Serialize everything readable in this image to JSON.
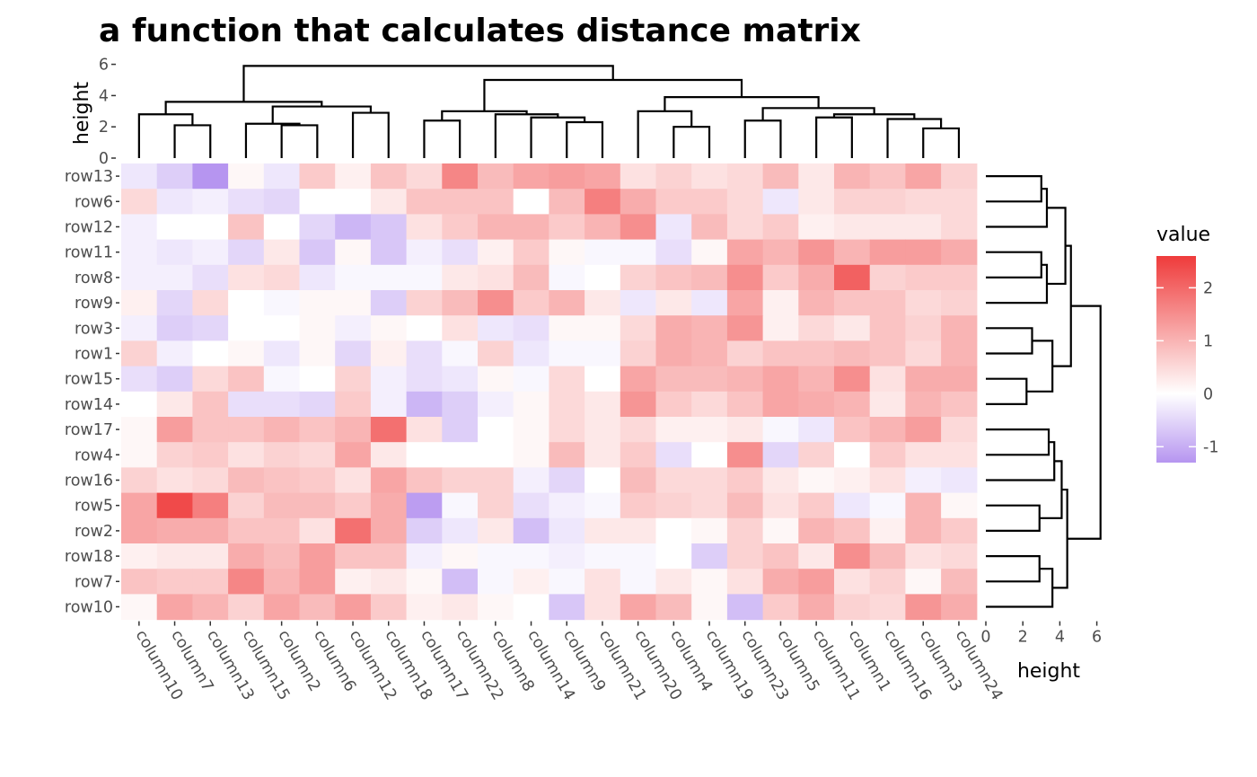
{
  "chart_data": {
    "type": "heatmap",
    "title": "a function that calculates distance matrix",
    "columns": [
      "column10",
      "column7",
      "column13",
      "column15",
      "column2",
      "column6",
      "column12",
      "column18",
      "column17",
      "column22",
      "column8",
      "column14",
      "column9",
      "column21",
      "column20",
      "column4",
      "column19",
      "column23",
      "column5",
      "column11",
      "column1",
      "column16",
      "column3",
      "column24"
    ],
    "rows": [
      "row13",
      "row6",
      "row12",
      "row11",
      "row8",
      "row9",
      "row3",
      "row1",
      "row15",
      "row14",
      "row17",
      "row4",
      "row16",
      "row5",
      "row2",
      "row18",
      "row7",
      "row10"
    ],
    "values": [
      [
        -0.3,
        -0.6,
        -1.4,
        0.1,
        -0.3,
        0.7,
        0.2,
        0.8,
        0.5,
        1.6,
        0.9,
        1.2,
        1.3,
        1.2,
        0.4,
        0.6,
        0.4,
        0.5,
        0.9,
        0.3,
        1.0,
        0.8,
        1.2,
        0.6
      ],
      [
        0.5,
        -0.3,
        -0.2,
        -0.4,
        -0.5,
        0.0,
        0.0,
        0.3,
        0.8,
        0.8,
        0.8,
        0.0,
        0.9,
        1.7,
        1.1,
        0.7,
        0.7,
        0.5,
        -0.3,
        0.3,
        0.6,
        0.6,
        0.5,
        0.5
      ],
      [
        -0.2,
        0.0,
        0.0,
        0.8,
        0.0,
        -0.5,
        -0.9,
        -0.7,
        0.4,
        0.7,
        1.0,
        1.0,
        0.7,
        1.0,
        1.5,
        -0.3,
        0.9,
        0.5,
        0.7,
        0.2,
        0.3,
        0.3,
        0.3,
        0.5
      ],
      [
        -0.2,
        -0.3,
        -0.2,
        -0.5,
        0.3,
        -0.7,
        0.1,
        -0.7,
        -0.2,
        -0.4,
        0.2,
        0.7,
        0.1,
        -0.1,
        -0.1,
        -0.4,
        0.1,
        1.2,
        1.0,
        1.4,
        1.0,
        1.3,
        1.3,
        1.1
      ],
      [
        -0.2,
        -0.2,
        -0.4,
        0.4,
        0.5,
        -0.3,
        -0.1,
        -0.1,
        -0.1,
        0.3,
        0.4,
        0.9,
        -0.1,
        0.0,
        0.6,
        0.8,
        0.9,
        1.5,
        0.7,
        1.1,
        2.1,
        0.6,
        0.7,
        0.7
      ],
      [
        0.2,
        -0.5,
        0.5,
        0.0,
        -0.1,
        0.1,
        0.1,
        -0.6,
        0.6,
        0.9,
        1.5,
        0.7,
        1.0,
        0.3,
        -0.3,
        0.3,
        -0.3,
        1.2,
        0.2,
        1.0,
        0.8,
        0.8,
        0.5,
        0.6
      ],
      [
        -0.2,
        -0.6,
        -0.5,
        0.0,
        0.0,
        0.1,
        -0.2,
        0.1,
        0.0,
        0.4,
        -0.3,
        -0.4,
        0.1,
        0.1,
        0.5,
        1.1,
        1.0,
        1.4,
        0.2,
        0.5,
        0.3,
        0.8,
        0.6,
        1.0
      ],
      [
        0.6,
        -0.2,
        0.0,
        0.1,
        -0.3,
        0.1,
        -0.5,
        0.2,
        -0.4,
        -0.1,
        0.6,
        -0.3,
        -0.1,
        -0.1,
        0.6,
        1.1,
        1.0,
        0.6,
        0.8,
        0.8,
        0.9,
        0.8,
        0.5,
        1.0
      ],
      [
        -0.4,
        -0.6,
        0.5,
        0.8,
        -0.1,
        0.0,
        0.6,
        -0.2,
        -0.4,
        -0.3,
        0.1,
        -0.1,
        0.5,
        0.0,
        1.2,
        0.9,
        0.9,
        1.0,
        1.2,
        1.0,
        1.5,
        0.4,
        1.1,
        1.1
      ],
      [
        0.0,
        0.3,
        0.8,
        -0.4,
        -0.4,
        -0.5,
        0.7,
        -0.2,
        -0.9,
        -0.6,
        -0.2,
        0.1,
        0.5,
        0.3,
        1.4,
        0.7,
        0.5,
        0.8,
        1.2,
        1.1,
        1.0,
        0.3,
        1.0,
        0.8
      ],
      [
        0.1,
        1.3,
        0.8,
        0.8,
        1.0,
        0.8,
        1.0,
        1.9,
        0.4,
        -0.6,
        0.0,
        0.1,
        0.5,
        0.3,
        0.5,
        0.2,
        0.2,
        0.3,
        -0.1,
        -0.3,
        0.8,
        1.0,
        1.3,
        0.5
      ],
      [
        0.1,
        0.6,
        0.7,
        0.4,
        0.6,
        0.5,
        1.2,
        0.3,
        0.0,
        0.0,
        0.0,
        0.1,
        0.9,
        0.3,
        0.7,
        -0.4,
        0.0,
        1.5,
        -0.5,
        0.6,
        0.0,
        0.7,
        0.4,
        0.4
      ],
      [
        0.6,
        0.4,
        0.5,
        0.9,
        0.8,
        0.7,
        0.4,
        1.2,
        0.8,
        0.6,
        0.6,
        -0.2,
        -0.5,
        0.0,
        0.9,
        0.5,
        0.5,
        0.7,
        0.3,
        0.1,
        0.2,
        0.4,
        -0.2,
        -0.3
      ],
      [
        1.2,
        2.4,
        1.7,
        0.6,
        0.9,
        0.9,
        0.7,
        1.1,
        -1.2,
        -0.1,
        0.6,
        -0.4,
        -0.2,
        -0.1,
        0.7,
        0.6,
        0.5,
        0.9,
        0.4,
        0.7,
        -0.3,
        -0.1,
        1.0,
        0.1
      ],
      [
        1.2,
        1.1,
        1.1,
        0.8,
        0.8,
        0.4,
        1.9,
        1.1,
        -0.6,
        -0.3,
        0.3,
        -0.8,
        -0.3,
        0.3,
        0.3,
        0.0,
        0.1,
        0.6,
        0.1,
        1.0,
        0.8,
        0.2,
        1.0,
        0.7
      ],
      [
        0.2,
        0.3,
        0.3,
        1.1,
        0.9,
        1.3,
        0.8,
        0.8,
        -0.2,
        0.1,
        -0.1,
        -0.1,
        -0.2,
        -0.1,
        -0.1,
        0.0,
        -0.6,
        0.6,
        0.8,
        0.3,
        1.5,
        0.9,
        0.4,
        0.5
      ],
      [
        0.8,
        0.7,
        0.7,
        1.6,
        1.0,
        1.3,
        0.2,
        0.3,
        0.1,
        -0.8,
        -0.1,
        0.2,
        -0.1,
        0.4,
        -0.1,
        0.3,
        0.1,
        0.4,
        1.1,
        1.3,
        0.4,
        0.6,
        0.1,
        0.9
      ],
      [
        0.1,
        1.2,
        1.0,
        0.6,
        1.2,
        0.9,
        1.3,
        0.7,
        0.2,
        0.3,
        0.1,
        0.0,
        -0.7,
        0.4,
        1.2,
        0.9,
        0.1,
        -0.8,
        0.7,
        1.1,
        0.6,
        0.5,
        1.4,
        1.1
      ]
    ],
    "col_dendrogram": {
      "label": "height",
      "ticks": [
        0,
        2,
        4,
        6
      ],
      "ylim": [
        0,
        6
      ],
      "merges": [
        {
          "left": "column7",
          "right": "column13",
          "height": 2.1
        },
        {
          "left": "column10",
          "right": "column7+13",
          "height": 2.8
        },
        {
          "left": "column2",
          "right": "column6",
          "height": 2.1
        },
        {
          "left": "column15",
          "right": "column2+6",
          "height": 2.2
        },
        {
          "left": "column12",
          "right": "column18",
          "height": 2.9
        },
        {
          "left": "column15+2+6",
          "right": "column12+18",
          "height": 3.3
        },
        {
          "left": "cluster A",
          "right": "cluster B",
          "height": 3.6
        },
        {
          "left": "column17",
          "right": "column22",
          "height": 2.4
        },
        {
          "left": "column9",
          "right": "column21",
          "height": 2.3
        },
        {
          "left": "column14",
          "right": "column9+21",
          "height": 2.6
        },
        {
          "left": "column8",
          "right": "column14+9+21",
          "height": 2.8
        },
        {
          "left": "column17+22",
          "right": "column8+14+9+21",
          "height": 3.0
        },
        {
          "left": "column4",
          "right": "column19",
          "height": 2.0
        },
        {
          "left": "column20",
          "right": "column4+19",
          "height": 3.0
        },
        {
          "left": "column20+4+19",
          "right": "column14 group",
          "height": 3.9
        },
        {
          "left": "column23",
          "right": "column5",
          "height": 2.4
        },
        {
          "left": "column11",
          "right": "column1",
          "height": 2.6
        },
        {
          "left": "column3",
          "right": "column24",
          "height": 1.9
        },
        {
          "left": "column16",
          "right": "column3+24",
          "height": 2.5
        },
        {
          "left": "column11+1",
          "right": "column16+3+24",
          "height": 2.8
        },
        {
          "left": "column23+5",
          "right": "column11+1+16+3+24",
          "height": 3.2
        },
        {
          "left": "column20 group",
          "right": "column23 group",
          "height": 3.8
        },
        {
          "left": "column17 group",
          "right": "column20 group",
          "height": 5.0
        },
        {
          "left": "column10 group",
          "right": "column17 group",
          "height": 5.6
        }
      ]
    },
    "row_dendrogram": {
      "label": "height",
      "ticks": [
        0,
        2,
        4,
        6
      ],
      "xlim": [
        0,
        6
      ],
      "merges": [
        {
          "left": "row13",
          "right": "row6",
          "height": 3.0
        },
        {
          "left": "row13+6",
          "right": "row12",
          "height": 3.3
        },
        {
          "left": "row11",
          "right": "row8",
          "height": 3.0
        },
        {
          "left": "row11+8",
          "right": "row9",
          "height": 3.3
        },
        {
          "left": "row13+6+12",
          "right": "row11+8+9",
          "height": 4.3
        },
        {
          "left": "row3",
          "right": "row1",
          "height": 2.5
        },
        {
          "left": "row15",
          "right": "row14",
          "height": 2.2
        },
        {
          "left": "row3+1",
          "right": "row15+14",
          "height": 3.6
        },
        {
          "left": "upper",
          "right": "middle",
          "height": 4.6
        },
        {
          "left": "row17",
          "right": "row4",
          "height": 3.4
        },
        {
          "left": "row17+4",
          "right": "row16",
          "height": 3.7
        },
        {
          "left": "row5",
          "right": "row2",
          "height": 2.9
        },
        {
          "left": "row17+4+16",
          "right": "row5+2",
          "height": 4.1
        },
        {
          "left": "row18",
          "right": "row7",
          "height": 2.9
        },
        {
          "left": "row18+7",
          "right": "row10",
          "height": 3.6
        },
        {
          "left": "row17 group",
          "right": "row18 group",
          "height": 4.4
        },
        {
          "left": "top",
          "right": "bottom",
          "height": 6.2
        }
      ]
    },
    "legend": {
      "title": "value",
      "ticks": [
        -1,
        0,
        1,
        2
      ],
      "range": [
        -1.3,
        2.6
      ],
      "low_color": "#b695f0",
      "mid_color": "#ffffff",
      "high_color": "#ef3b3b"
    }
  }
}
